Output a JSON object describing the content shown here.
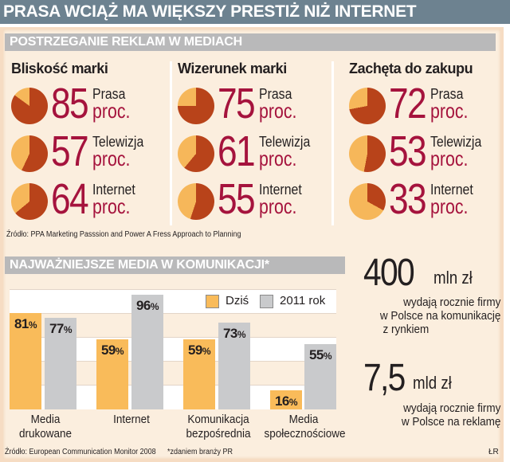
{
  "header": {
    "title": "PRASA WCIĄŻ MA WIĘKSZY PRESTIŻ NIŻ INTERNET"
  },
  "section1": {
    "title": "POSTRZEGANIE REKLAM W MEDIACH",
    "source": "Źródło: PPA Marketing Passsion and Power A Fress Approach to Planning",
    "unit": "proc.",
    "columns": [
      {
        "title": "Bliskość marki",
        "rows": [
          {
            "value": "85",
            "label": "Prasa"
          },
          {
            "value": "57",
            "label": "Telewizja"
          },
          {
            "value": "64",
            "label": "Internet"
          }
        ]
      },
      {
        "title": "Wizerunek marki",
        "rows": [
          {
            "value": "75",
            "label": "Prasa"
          },
          {
            "value": "61",
            "label": "Telewizja"
          },
          {
            "value": "55",
            "label": "Internet"
          }
        ]
      },
      {
        "title": "Zachęta do zakupu",
        "rows": [
          {
            "value": "72",
            "label": "Prasa"
          },
          {
            "value": "53",
            "label": "Telewizja"
          },
          {
            "value": "33",
            "label": "Internet"
          }
        ]
      }
    ]
  },
  "section2": {
    "title": "NAJWAŻNIEJSZE MEDIA W KOMUNIKACJI*",
    "legend": {
      "today": "Dziś",
      "future": "2011 rok"
    },
    "categories": [
      "Media drukowane",
      "Internet",
      "Komunikacja bezpośrednia",
      "Media społecznościowe"
    ],
    "category_lines": [
      [
        "Media",
        "drukowane"
      ],
      [
        "Internet",
        ""
      ],
      [
        "Komunikacja",
        "bezpośrednia"
      ],
      [
        "Media",
        "społecznościowe"
      ]
    ],
    "today_values": [
      "81",
      "59",
      "59",
      "16"
    ],
    "future_values": [
      "77",
      "96",
      "73",
      "55"
    ],
    "pct": "%",
    "source": "Źródło: European Communication Monitor 2008",
    "note": "*zdaniem branży PR",
    "credit": "ŁR"
  },
  "stats": [
    {
      "number": "400",
      "unit": "mln zł",
      "lines": [
        "wydają rocznie firmy",
        "w Polsce na komunikację",
        "z rynkiem"
      ]
    },
    {
      "number": "7,5",
      "unit": "mld zł",
      "lines": [
        "wydają rocznie firmy",
        "w Polsce na reklamę"
      ]
    }
  ],
  "colors": {
    "title_bar": "#6d8290",
    "section_bar": "#b9b9ba",
    "panel": "#fbeede",
    "accent_number": "#a5133d",
    "pie_main": "#b8431a",
    "pie_rest": "#f6b75a",
    "bar_today": "#f9bb5a",
    "bar_future": "#c9cacc"
  },
  "chart_data": [
    {
      "type": "pie",
      "title": "POSTRZEGANIE REKLAM W MEDIACH",
      "groups": [
        "Bliskość marki",
        "Wizerunek marki",
        "Zachęta do zakupu"
      ],
      "categories": [
        "Prasa",
        "Telewizja",
        "Internet"
      ],
      "series": [
        {
          "name": "Bliskość marki",
          "values": [
            85,
            57,
            64
          ]
        },
        {
          "name": "Wizerunek marki",
          "values": [
            75,
            61,
            55
          ]
        },
        {
          "name": "Zachęta do zakupu",
          "values": [
            72,
            53,
            33
          ]
        }
      ],
      "unit": "proc.",
      "source": "Źródło: PPA Marketing Passsion and Power A Fress Approach to Planning"
    },
    {
      "type": "bar",
      "title": "NAJWAŻNIEJSZE MEDIA W KOMUNIKACJI*",
      "categories": [
        "Media drukowane",
        "Internet",
        "Komunikacja bezpośrednia",
        "Media społecznościowe"
      ],
      "series": [
        {
          "name": "Dziś",
          "values": [
            81,
            59,
            59,
            16
          ]
        },
        {
          "name": "2011 rok",
          "values": [
            77,
            96,
            73,
            55
          ]
        }
      ],
      "xlabel": "",
      "ylabel": "%",
      "ylim": [
        0,
        100
      ],
      "grid": "alternating horizontal bands",
      "legend_position": "top-right",
      "source": "Źródło: European Communication Monitor 2008",
      "note": "*zdaniem branży PR"
    }
  ]
}
